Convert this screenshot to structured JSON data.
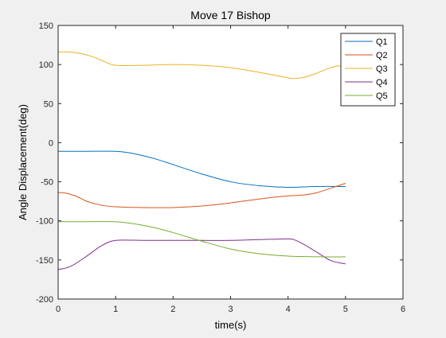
{
  "chart_data": {
    "type": "line",
    "title": "Move 17 Bishop",
    "xlabel": "time(s)",
    "ylabel": "Angle Displacement(deg)",
    "xlim": [
      0,
      6
    ],
    "ylim": [
      -200,
      150
    ],
    "xticks": [
      0,
      1,
      2,
      3,
      4,
      5,
      6
    ],
    "yticks": [
      -200,
      -150,
      -100,
      -50,
      0,
      50,
      100,
      150
    ],
    "grid": false,
    "legend_position": "top-right",
    "series": [
      {
        "name": "Q1",
        "color": "#0072bd",
        "x": [
          0,
          0.5,
          1.0,
          1.25,
          1.5,
          1.75,
          2.0,
          2.5,
          3.0,
          3.5,
          4.0,
          4.5,
          5.0
        ],
        "y": [
          -11,
          -11,
          -11,
          -13,
          -17,
          -22,
          -28,
          -40,
          -50,
          -55,
          -57,
          -56,
          -56
        ]
      },
      {
        "name": "Q2",
        "color": "#d95319",
        "x": [
          0,
          0.1,
          0.3,
          0.5,
          0.75,
          1.0,
          1.5,
          2.0,
          2.5,
          3.0,
          3.5,
          4.0,
          4.25,
          4.5,
          4.75,
          5.0
        ],
        "y": [
          -64,
          -64,
          -68,
          -75,
          -80,
          -82,
          -83,
          -83,
          -81,
          -77,
          -72,
          -68,
          -67,
          -64,
          -58,
          -52
        ]
      },
      {
        "name": "Q3",
        "color": "#edb120",
        "x": [
          0,
          0.2,
          0.4,
          0.6,
          0.8,
          1.0,
          1.5,
          2.0,
          2.5,
          3.0,
          3.5,
          4.0,
          4.1,
          4.3,
          4.5,
          4.7,
          4.85,
          5.0
        ],
        "y": [
          116,
          116,
          114,
          110,
          104,
          99,
          99,
          100,
          99,
          96,
          90,
          83,
          82,
          84,
          89,
          95,
          98,
          98
        ]
      },
      {
        "name": "Q4",
        "color": "#7e2f8e",
        "x": [
          0,
          0.1,
          0.25,
          0.5,
          0.75,
          1.0,
          1.5,
          2.0,
          2.5,
          3.0,
          3.5,
          4.0,
          4.1,
          4.25,
          4.5,
          4.75,
          5.0
        ],
        "y": [
          -162,
          -161,
          -157,
          -145,
          -132,
          -125,
          -125,
          -125,
          -125,
          -125,
          -124,
          -123,
          -124,
          -129,
          -140,
          -151,
          -155
        ]
      },
      {
        "name": "Q5",
        "color": "#77ac30",
        "x": [
          0,
          0.5,
          1.0,
          1.25,
          1.5,
          1.75,
          2.0,
          2.5,
          3.0,
          3.5,
          4.0,
          4.5,
          5.0
        ],
        "y": [
          -101,
          -101,
          -101,
          -103,
          -106,
          -110,
          -115,
          -126,
          -136,
          -142,
          -145,
          -146,
          -146
        ]
      }
    ]
  }
}
